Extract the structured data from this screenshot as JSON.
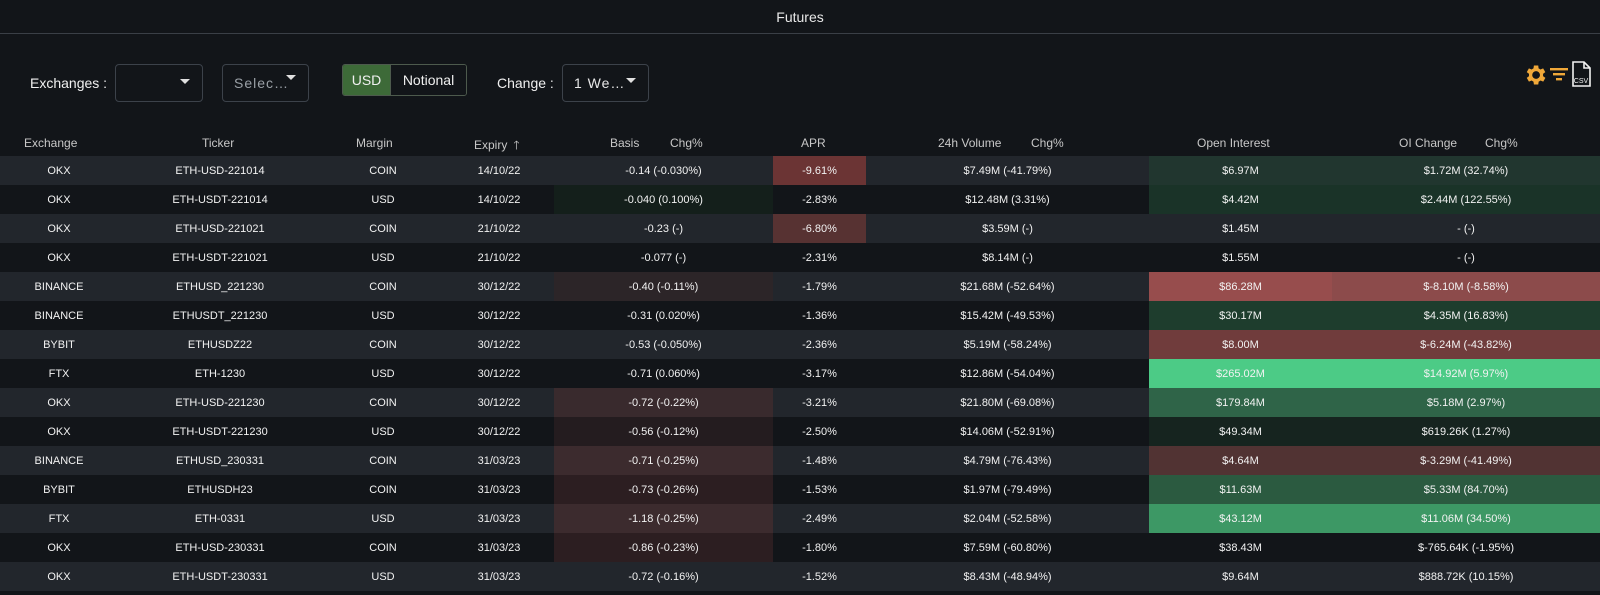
{
  "title": "Futures",
  "controls": {
    "exchanges_label": "Exchanges :",
    "exchange_select_value": "",
    "second_select_value": "Selec…",
    "currency_options": [
      "USD",
      "Notional"
    ],
    "currency_selected": "USD",
    "change_label": "Change :",
    "change_value": "1 We…"
  },
  "toolbar": {
    "icons": [
      "settings-icon",
      "filter-icon",
      "csv-export-icon"
    ],
    "csv_label": "CSV"
  },
  "colors": {
    "accent_green": "#3d6a38",
    "icon_orange": "#f0a839"
  },
  "table": {
    "headers": {
      "exchange": "Exchange",
      "ticker": "Ticker",
      "margin": "Margin",
      "expiry": "Expiry",
      "basis": "Basis",
      "basis_chg": "Chg%",
      "apr": "APR",
      "volume": "24h Volume",
      "volume_chg": "Chg%",
      "open_interest": "Open Interest",
      "oi_change": "OI Change",
      "oi_change_chg": "Chg%"
    },
    "sort": {
      "column": "expiry",
      "direction": "ascending"
    },
    "rows": [
      {
        "exchange": "OKX",
        "ticker": "ETH-USD-221014",
        "margin": "COIN",
        "expiry": "14/10/22",
        "basis": "-0.14 (-0.030%)",
        "apr": "-9.61%",
        "volume": "$7.49M (-41.79%)",
        "oi": "$6.97M",
        "oi_change": "$1.72M (32.74%)",
        "basis_bg": "",
        "apr_bg": "#6b3434",
        "oi_bg": "#21362f",
        "oc_bg": "#21362f"
      },
      {
        "exchange": "OKX",
        "ticker": "ETH-USDT-221014",
        "margin": "USD",
        "expiry": "14/10/22",
        "basis": "-0.040 (0.100%)",
        "apr": "-2.83%",
        "volume": "$12.48M (3.31%)",
        "oi": "$4.42M",
        "oi_change": "$2.44M (122.55%)",
        "basis_bg": "#141f1b",
        "apr_bg": "",
        "oi_bg": "#1a3328",
        "oc_bg": "#1a3328"
      },
      {
        "exchange": "OKX",
        "ticker": "ETH-USD-221021",
        "margin": "COIN",
        "expiry": "21/10/22",
        "basis": "-0.23 (-)",
        "apr": "-6.80%",
        "volume": "$3.59M (-)",
        "oi": "$1.45M",
        "oi_change": "- (-)",
        "basis_bg": "",
        "apr_bg": "#573232",
        "oi_bg": "",
        "oc_bg": ""
      },
      {
        "exchange": "OKX",
        "ticker": "ETH-USDT-221021",
        "margin": "USD",
        "expiry": "21/10/22",
        "basis": "-0.077 (-)",
        "apr": "-2.31%",
        "volume": "$8.14M (-)",
        "oi": "$1.55M",
        "oi_change": "- (-)",
        "basis_bg": "",
        "apr_bg": "",
        "oi_bg": "",
        "oc_bg": ""
      },
      {
        "exchange": "BINANCE",
        "ticker": "ETHUSD_221230",
        "margin": "COIN",
        "expiry": "30/12/22",
        "basis": "-0.40 (-0.11%)",
        "apr": "-1.79%",
        "volume": "$21.68M (-52.64%)",
        "oi": "$86.28M",
        "oi_change": "$-8.10M (-8.58%)",
        "basis_bg": "#2c2528",
        "apr_bg": "",
        "oi_bg": "#974d4d",
        "oc_bg": "#8c4b4b"
      },
      {
        "exchange": "BINANCE",
        "ticker": "ETHUSDT_221230",
        "margin": "USD",
        "expiry": "30/12/22",
        "basis": "-0.31 (0.020%)",
        "apr": "-1.36%",
        "volume": "$15.42M (-49.53%)",
        "oi": "$30.17M",
        "oi_change": "$4.35M (16.83%)",
        "basis_bg": "",
        "apr_bg": "",
        "oi_bg": "#1e3d2d",
        "oc_bg": "#1e3d2d"
      },
      {
        "exchange": "BYBIT",
        "ticker": "ETHUSDZ22",
        "margin": "COIN",
        "expiry": "30/12/22",
        "basis": "-0.53 (-0.050%)",
        "apr": "-2.36%",
        "volume": "$5.19M (-58.24%)",
        "oi": "$8.00M",
        "oi_change": "$-6.24M (-43.82%)",
        "basis_bg": "",
        "apr_bg": "",
        "oi_bg": "#703c3c",
        "oc_bg": "#703c3c"
      },
      {
        "exchange": "FTX",
        "ticker": "ETH-1230",
        "margin": "USD",
        "expiry": "30/12/22",
        "basis": "-0.71 (0.060%)",
        "apr": "-3.17%",
        "volume": "$12.86M (-54.04%)",
        "oi": "$265.02M",
        "oi_change": "$14.92M (5.97%)",
        "basis_bg": "",
        "apr_bg": "",
        "oi_bg": "#4ccb86",
        "oc_bg": "#4ccb86"
      },
      {
        "exchange": "OKX",
        "ticker": "ETH-USD-221230",
        "margin": "COIN",
        "expiry": "30/12/22",
        "basis": "-0.72 (-0.22%)",
        "apr": "-3.21%",
        "volume": "$21.80M (-69.08%)",
        "oi": "$179.84M",
        "oi_change": "$5.18M (2.97%)",
        "basis_bg": "#392a2d",
        "apr_bg": "",
        "oi_bg": "#2f6448",
        "oc_bg": "#2f6448"
      },
      {
        "exchange": "OKX",
        "ticker": "ETH-USDT-221230",
        "margin": "USD",
        "expiry": "30/12/22",
        "basis": "-0.56 (-0.12%)",
        "apr": "-2.50%",
        "volume": "$14.06M (-52.91%)",
        "oi": "$49.34M",
        "oi_change": "$619.26K (1.27%)",
        "basis_bg": "#241c1f",
        "apr_bg": "",
        "oi_bg": "#16241f",
        "oc_bg": "#16241f"
      },
      {
        "exchange": "BINANCE",
        "ticker": "ETHUSD_230331",
        "margin": "COIN",
        "expiry": "31/03/23",
        "basis": "-0.71 (-0.25%)",
        "apr": "-1.48%",
        "volume": "$4.79M (-76.43%)",
        "oi": "$4.64M",
        "oi_change": "$-3.29M (-41.49%)",
        "basis_bg": "#3c2b2e",
        "apr_bg": "",
        "oi_bg": "#513333",
        "oc_bg": "#513333"
      },
      {
        "exchange": "BYBIT",
        "ticker": "ETHUSDH23",
        "margin": "COIN",
        "expiry": "31/03/23",
        "basis": "-0.73 (-0.26%)",
        "apr": "-1.53%",
        "volume": "$1.97M (-79.49%)",
        "oi": "$11.63M",
        "oi_change": "$5.33M (84.70%)",
        "basis_bg": "#2c1e21",
        "apr_bg": "",
        "oi_bg": "#2b5a40",
        "oc_bg": "#2b5a40"
      },
      {
        "exchange": "FTX",
        "ticker": "ETH-0331",
        "margin": "USD",
        "expiry": "31/03/23",
        "basis": "-1.18 (-0.25%)",
        "apr": "-2.49%",
        "volume": "$2.04M (-52.58%)",
        "oi": "$43.12M",
        "oi_change": "$11.06M (34.50%)",
        "basis_bg": "#3c2b2e",
        "apr_bg": "",
        "oi_bg": "#3d9865",
        "oc_bg": "#3d9865"
      },
      {
        "exchange": "OKX",
        "ticker": "ETH-USD-230331",
        "margin": "COIN",
        "expiry": "31/03/23",
        "basis": "-0.86 (-0.23%)",
        "apr": "-1.80%",
        "volume": "$7.59M (-60.80%)",
        "oi": "$38.43M",
        "oi_change": "$-765.64K (-1.95%)",
        "basis_bg": "#2c1e21",
        "apr_bg": "",
        "oi_bg": "",
        "oc_bg": ""
      },
      {
        "exchange": "OKX",
        "ticker": "ETH-USDT-230331",
        "margin": "USD",
        "expiry": "31/03/23",
        "basis": "-0.72 (-0.16%)",
        "apr": "-1.52%",
        "volume": "$8.43M (-48.94%)",
        "oi": "$9.64M",
        "oi_change": "$888.72K (10.15%)",
        "basis_bg": "",
        "apr_bg": "",
        "oi_bg": "",
        "oc_bg": ""
      }
    ]
  }
}
